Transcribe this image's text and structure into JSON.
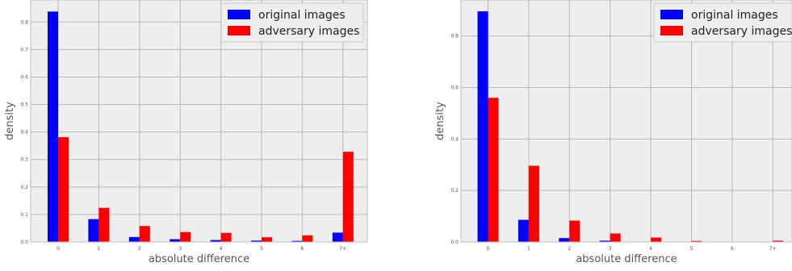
{
  "colors": {
    "original": "#0000ff",
    "adversary": "#ff0000",
    "plot_bg": "#eeeeee",
    "grid": "#b8b8b8",
    "frame": "#bdbdbd",
    "tick_text": "#555555",
    "label_text": "#555555"
  },
  "chart_data": [
    {
      "type": "bar",
      "xlabel": "absolute difference",
      "ylabel": "density",
      "categories": [
        "0",
        "1",
        "2",
        "3",
        "4",
        "5",
        "6",
        "7+"
      ],
      "yticks": [
        "0.0",
        "0.1",
        "0.2",
        "0.3",
        "0.4",
        "0.5",
        "0.6",
        "0.7",
        "0.8"
      ],
      "ylim": [
        0,
        0.88
      ],
      "grid": true,
      "legend_position": "top-right",
      "series": [
        {
          "name": "original images",
          "color": "#0000ff",
          "values": [
            0.838,
            0.083,
            0.018,
            0.01,
            0.007,
            0.005,
            0.004,
            0.034
          ]
        },
        {
          "name": "adversary images",
          "color": "#ff0000",
          "values": [
            0.381,
            0.124,
            0.058,
            0.036,
            0.033,
            0.017,
            0.024,
            0.328
          ]
        }
      ]
    },
    {
      "type": "bar",
      "xlabel": "absolute difference",
      "ylabel": "density",
      "categories": [
        "0",
        "1",
        "2",
        "3",
        "4",
        "5",
        "6",
        "7+"
      ],
      "yticks": [
        "0.0",
        "0.2",
        "0.4",
        "0.6",
        "0.8"
      ],
      "ylim": [
        0,
        0.94
      ],
      "grid": true,
      "legend_position": "top-right",
      "series": [
        {
          "name": "original images",
          "color": "#0000ff",
          "values": [
            0.896,
            0.086,
            0.015,
            0.005,
            0.001,
            0.0,
            0.0,
            0.0
          ]
        },
        {
          "name": "adversary images",
          "color": "#ff0000",
          "values": [
            0.56,
            0.296,
            0.083,
            0.033,
            0.017,
            0.004,
            0.0,
            0.005
          ]
        }
      ]
    }
  ]
}
